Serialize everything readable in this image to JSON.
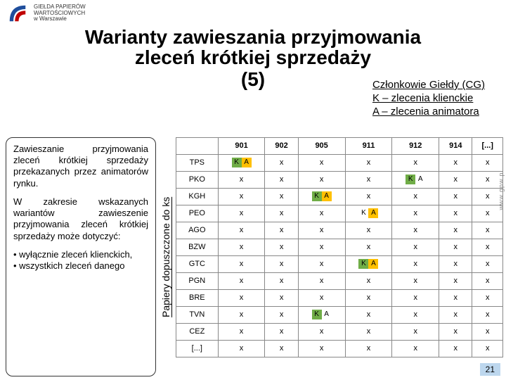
{
  "header": {
    "logo_text1": "GIEŁDA PAPIERÓW",
    "logo_text2": "WARTOŚCIOWYCH",
    "logo_text3": "w Warszawie"
  },
  "title": {
    "line1": "Warianty zawieszania przyjmowania",
    "line2": "zleceń krótkiej sprzedaży",
    "line3": "(5)"
  },
  "legend": {
    "l1": "Członkowie Giełdy (CG)",
    "l2": "K – zlecenia klienckie",
    "l3": "A – zlecenia animatora"
  },
  "leftbox": {
    "p1": "Zawieszanie przyjmowania zleceń krótkiej sprzedaży przekazanych przez animatorów rynku.",
    "p2": "W zakresie wskazanych wariantów zawieszenie przyjmowania zleceń krótkiej sprzedaży może dotyczyć:",
    "b1": "• wyłącznie zleceń klienckich,",
    "b2": "• wszystkich zleceń danego"
  },
  "vlabel": "Papiery dopuszczone do ks",
  "table": {
    "headers": [
      "",
      "901",
      "902",
      "905",
      "911",
      "912",
      "914",
      "[...]"
    ],
    "rows": [
      {
        "n": "TPS",
        "c": [
          [
            "K",
            "A"
          ],
          "x",
          "x",
          "x",
          "x",
          "x",
          "x"
        ]
      },
      {
        "n": "PKO",
        "c": [
          "x",
          "x",
          "x",
          "x",
          [
            "K",
            "A"
          ],
          "x",
          "x"
        ]
      },
      {
        "n": "KGH",
        "c": [
          "x",
          "x",
          [
            "K",
            "A"
          ],
          "x",
          "x",
          "x",
          "x"
        ]
      },
      {
        "n": "PEO",
        "c": [
          "x",
          "x",
          "x",
          [
            "K",
            "A"
          ],
          "x",
          "x",
          "x"
        ]
      },
      {
        "n": "AGO",
        "c": [
          "x",
          "x",
          "x",
          "x",
          "x",
          "x",
          "x"
        ]
      },
      {
        "n": "BZW",
        "c": [
          "x",
          "x",
          "x",
          "x",
          "x",
          "x",
          "x"
        ]
      },
      {
        "n": "GTC",
        "c": [
          "x",
          "x",
          "x",
          [
            "K",
            "A"
          ],
          "x",
          "x",
          "x"
        ]
      },
      {
        "n": "PGN",
        "c": [
          "x",
          "x",
          "x",
          "x",
          "x",
          "x",
          "x"
        ]
      },
      {
        "n": "BRE",
        "c": [
          "x",
          "x",
          "x",
          "x",
          "x",
          "x",
          "x"
        ]
      },
      {
        "n": "TVN",
        "c": [
          "x",
          "x",
          [
            "K",
            "A"
          ],
          "x",
          "x",
          "x",
          "x"
        ]
      },
      {
        "n": "CEZ",
        "c": [
          "x",
          "x",
          "x",
          "x",
          "x",
          "x",
          "x"
        ]
      },
      {
        "n": "[...]",
        "c": [
          "x",
          "x",
          "x",
          "x",
          "x",
          "x",
          "x"
        ]
      }
    ],
    "highlight": {
      "0": {
        "0": "both"
      },
      "1": {
        "4": "K"
      },
      "2": {
        "2": "both"
      },
      "3": {
        "3": "A"
      },
      "6": {
        "3": "both"
      },
      "9": {
        "2": "K"
      }
    }
  },
  "pagenum": "21",
  "sideurl": "www.gpw.pl"
}
